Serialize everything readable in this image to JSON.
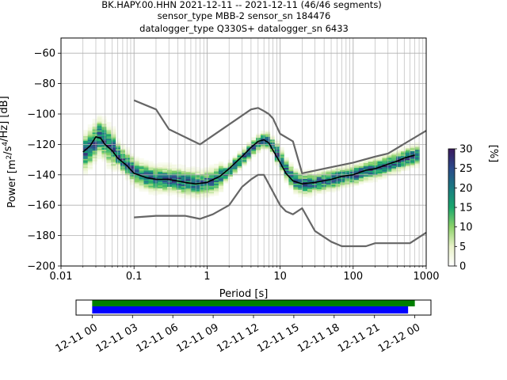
{
  "header": {
    "title_line1": "BK.HAPY.00.HHN   2021-12-11 -- 2021-12-11  (46/46 segments)",
    "title_line2": "sensor_type MBB-2 sensor_sn 184476",
    "title_line3": "datalogger_type Q330S+ datalogger_sn 6433"
  },
  "chart_data": [
    {
      "type": "heatmap",
      "xlabel": "Period [s]",
      "ylabel": "Power [m²/s⁴/Hz] [dB]",
      "xscale": "log",
      "xlim": [
        0.01,
        1000
      ],
      "ylim": [
        -200,
        -50
      ],
      "x_ticks": [
        0.01,
        0.1,
        1,
        10,
        100,
        1000
      ],
      "x_tick_labels": [
        "0.01",
        "0.1",
        "1",
        "10",
        "100",
        "1000"
      ],
      "y_ticks": [
        -200,
        -180,
        -160,
        -140,
        -120,
        -100,
        -80,
        -60
      ],
      "y_tick_labels": [
        "−200",
        "−180",
        "−160",
        "−140",
        "−120",
        "−100",
        "−80",
        "−60"
      ],
      "grid": true,
      "colorbar": {
        "label": "[%]",
        "range": [
          0,
          30
        ],
        "ticks": [
          0,
          5,
          10,
          15,
          20,
          25,
          30
        ],
        "tick_labels": [
          "0",
          "5",
          "10",
          "15",
          "20",
          "25",
          "30"
        ],
        "colors": [
          "#ffffff",
          "#e9f2c9",
          "#8cd26a",
          "#1aa86d",
          "#1b7a82",
          "#2b4a8a",
          "#3b1a5e"
        ]
      },
      "series": [
        {
          "role": "mean_curve",
          "color": "#000000",
          "x": [
            0.02,
            0.025,
            0.03,
            0.035,
            0.04,
            0.05,
            0.06,
            0.08,
            0.1,
            0.15,
            0.2,
            0.3,
            0.5,
            0.7,
            1.0,
            1.5,
            2.0,
            3.0,
            4.0,
            5.0,
            6.0,
            7.0,
            8.0,
            10,
            12,
            15,
            20,
            30,
            50,
            70,
            100,
            150,
            200,
            300,
            400,
            500,
            700
          ],
          "y": [
            -125,
            -121,
            -115,
            -116,
            -120,
            -124,
            -129,
            -134,
            -139,
            -142,
            -143,
            -143,
            -145,
            -146,
            -145,
            -141,
            -136,
            -128,
            -122,
            -118,
            -117,
            -119,
            -124,
            -132,
            -139,
            -144,
            -146,
            -145,
            -143,
            -141,
            -140,
            -137,
            -136,
            -133,
            -131,
            -129,
            -127
          ]
        },
        {
          "role": "noise_model_upper",
          "color": "#666666",
          "x": [
            0.1,
            0.2,
            0.3,
            0.8,
            4.0,
            5.0,
            6.0,
            7.0,
            8.0,
            10,
            15,
            20,
            50,
            100,
            200,
            300,
            1000
          ],
          "y": [
            -91,
            -97,
            -110,
            -120,
            -97,
            -96,
            -98,
            -100,
            -103,
            -113,
            -118,
            -139,
            -135,
            -132,
            -128,
            -126,
            -111
          ]
        },
        {
          "role": "noise_model_lower",
          "color": "#666666",
          "x": [
            0.1,
            0.2,
            0.5,
            0.8,
            1.2,
            2.0,
            3.0,
            4.0,
            5.0,
            6.0,
            10,
            12,
            15,
            20,
            30,
            50,
            70,
            100,
            150,
            200,
            300,
            600,
            1000
          ],
          "y": [
            -168,
            -167,
            -167,
            -169,
            -166,
            -160,
            -148,
            -143,
            -140,
            -140,
            -160,
            -164,
            -166,
            -162,
            -177,
            -184,
            -187,
            -187,
            -187,
            -185,
            -185,
            -185,
            -178
          ]
        }
      ]
    },
    {
      "type": "timeline",
      "x_tick_labels": [
        "12-11 00",
        "12-11 03",
        "12-11 06",
        "12-11 09",
        "12-11 12",
        "12-11 15",
        "12-11 18",
        "12-11 21",
        "12-12 00"
      ],
      "x_tick_hours": [
        0,
        3,
        6,
        9,
        12,
        15,
        18,
        21,
        24
      ],
      "xlim_hours": [
        -1.2,
        25.2
      ],
      "bars": [
        {
          "row": "top",
          "color": "#008000",
          "start_hour": 0,
          "end_hour": 24
        },
        {
          "row": "bottom",
          "color": "#0000ff",
          "start_hour": 0,
          "end_hour": 23.5
        }
      ]
    }
  ]
}
